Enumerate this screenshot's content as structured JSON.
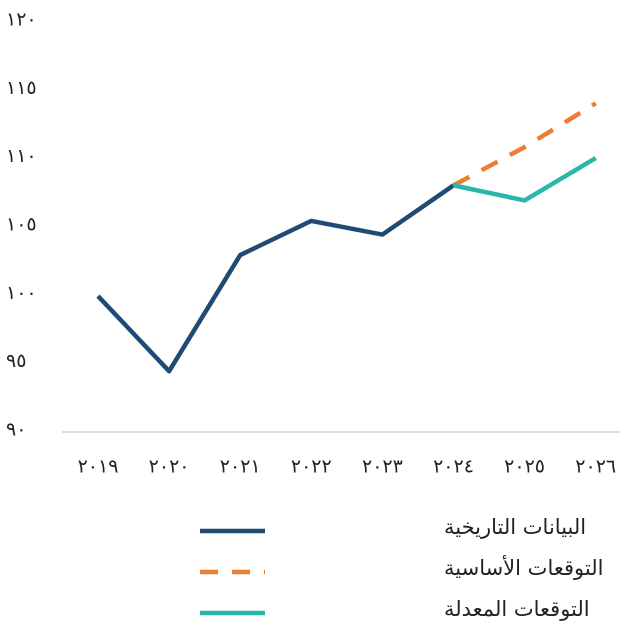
{
  "chart_data": {
    "type": "line",
    "categories": [
      "٢٠١٩",
      "٢٠٢٠",
      "٢٠٢١",
      "٢٠٢٢",
      "٢٠٢٣",
      "٢٠٢٤",
      "٢٠٢٥",
      "٢٠٢٦"
    ],
    "series": [
      {
        "name": "البيانات التاريخية",
        "color": "#1f4a73",
        "style": "solid",
        "values": [
          99.8,
          94.3,
          102.8,
          105.3,
          104.3,
          107.9,
          null,
          null
        ]
      },
      {
        "name": "التوقعات الأساسية",
        "color": "#ed7d31",
        "style": "dashed",
        "values": [
          null,
          null,
          null,
          null,
          null,
          107.9,
          110.7,
          113.9
        ]
      },
      {
        "name": "التوقعات المعدلة",
        "color": "#2ab7a9",
        "style": "solid",
        "values": [
          null,
          null,
          null,
          null,
          null,
          107.9,
          106.8,
          109.9
        ]
      }
    ],
    "ylim": [
      90,
      120
    ],
    "yticks": [
      {
        "value": 90,
        "label": "٩٠"
      },
      {
        "value": 95,
        "label": "٩٥"
      },
      {
        "value": 100,
        "label": "١٠٠"
      },
      {
        "value": 105,
        "label": "١٠٥"
      },
      {
        "value": 110,
        "label": "١١٠"
      },
      {
        "value": 115,
        "label": "١١٥"
      },
      {
        "value": 120,
        "label": "١٢٠"
      }
    ],
    "grid": false,
    "legend": "bottom"
  }
}
